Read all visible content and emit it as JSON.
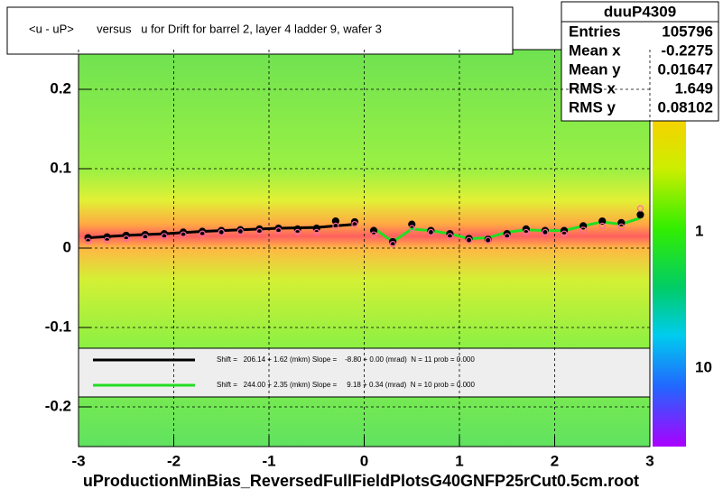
{
  "chart_data": {
    "type": "scatter",
    "title": "<u - uP>       versus   u for Drift for barrel 2, layer 4 ladder 9, wafer 3",
    "x_label": "uProductionMinBias_ReversedFullFieldPlotsG40GNFP25rCut0.5cm.root",
    "xlim": [
      -3,
      3
    ],
    "xticks": [
      -3,
      -2,
      -1,
      0,
      1,
      2,
      3
    ],
    "ylim": [
      -0.25,
      0.25
    ],
    "yticks": [
      0.2,
      0.1,
      0,
      -0.1,
      -0.2
    ],
    "grid": true,
    "color_axis_labels": [
      "1",
      "10"
    ],
    "stats": {
      "title": "duuP4309",
      "rows": [
        [
          "Entries",
          "105796"
        ],
        [
          "Mean x",
          "-0.2275"
        ],
        [
          "Mean y",
          "0.01647"
        ],
        [
          "RMS x",
          "1.649"
        ],
        [
          "RMS y",
          "0.08102"
        ]
      ]
    },
    "x": [
      -2.9,
      -2.7,
      -2.5,
      -2.3,
      -2.1,
      -1.9,
      -1.7,
      -1.5,
      -1.3,
      -1.1,
      -0.9,
      -0.7,
      -0.5,
      -0.3,
      -0.1,
      0.1,
      0.3,
      0.5,
      0.7,
      0.9,
      1.1,
      1.3,
      1.5,
      1.7,
      1.9,
      2.1,
      2.3,
      2.5,
      2.7,
      2.9
    ],
    "points": [
      {
        "color": "#000000",
        "marker": "filled",
        "values": [
          0.013,
          0.014,
          0.016,
          0.017,
          0.018,
          0.02,
          0.021,
          0.022,
          0.023,
          0.024,
          0.025,
          0.024,
          0.025,
          0.034,
          0.033,
          0.022,
          0.008,
          0.03,
          0.022,
          0.018,
          0.012,
          0.011,
          0.018,
          0.024,
          0.022,
          0.022,
          0.028,
          0.034,
          0.032,
          0.042
        ]
      },
      {
        "color": "#ff66aa",
        "marker": "open",
        "values": [
          0.009,
          0.01,
          0.012,
          0.014,
          0.015,
          0.017,
          0.018,
          0.02,
          0.021,
          0.021,
          0.022,
          0.02,
          0.02,
          0.028,
          0.03,
          0.017,
          0.005,
          0.025,
          0.02,
          0.015,
          0.01,
          0.01,
          0.015,
          0.02,
          0.02,
          0.018,
          0.023,
          0.028,
          0.027,
          0.05
        ]
      }
    ],
    "series": [
      {
        "name": "Shift =   206.14 + 1.62 (mkm) Slope =    -8.80 + 0.00 (mrad)  N = 11 prob = 0.000",
        "color": "#000000",
        "x": [
          -2.9,
          -2.5,
          -2.1,
          -1.7,
          -1.3,
          -0.9,
          -0.5,
          -0.1
        ],
        "values": [
          0.013,
          0.016,
          0.018,
          0.021,
          0.023,
          0.025,
          0.026,
          0.03
        ]
      },
      {
        "name": "Shift =   244.00 + 2.35 (mkm) Slope =     9.18 + 0.34 (mrad)  N = 10 prob = 0.000",
        "color": "#22dd22",
        "x": [
          0.1,
          0.3,
          0.5,
          0.7,
          0.9,
          1.1,
          1.3,
          1.5,
          1.7,
          1.9,
          2.1,
          2.3,
          2.5,
          2.7,
          2.9
        ],
        "values": [
          0.025,
          0.008,
          0.024,
          0.022,
          0.018,
          0.012,
          0.013,
          0.02,
          0.023,
          0.022,
          0.022,
          0.028,
          0.033,
          0.03,
          0.038
        ]
      }
    ]
  }
}
